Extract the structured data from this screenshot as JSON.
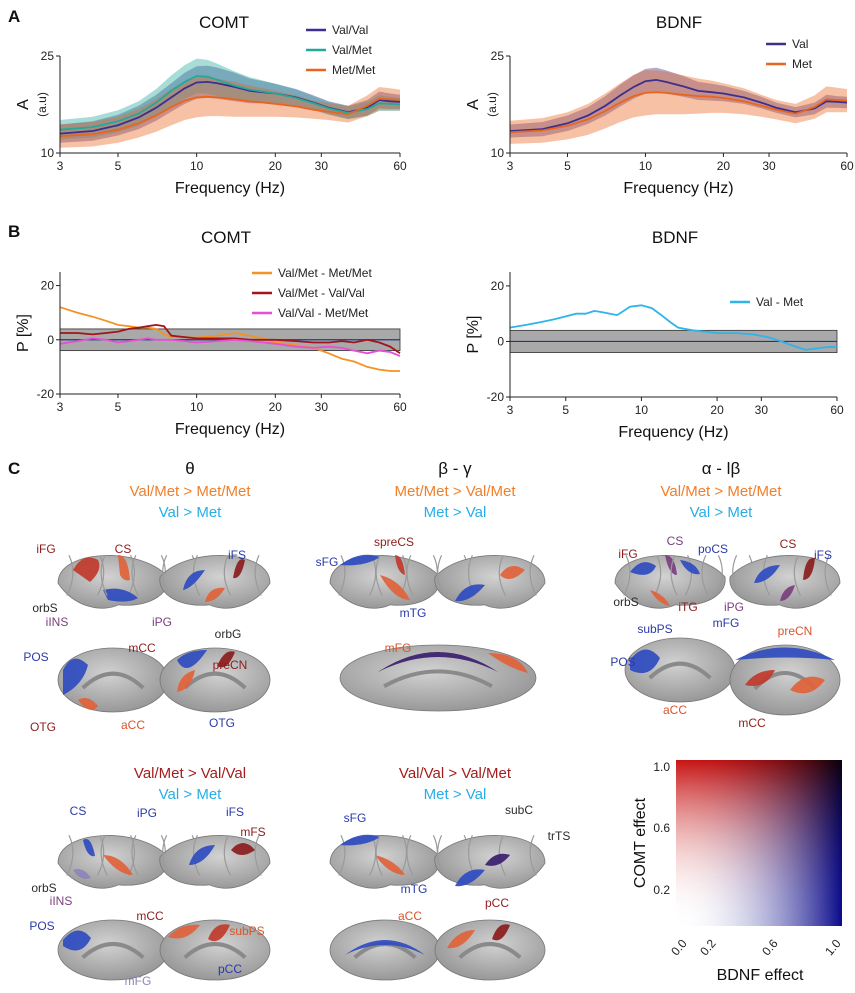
{
  "panels": {
    "A": "A",
    "B": "B",
    "C": "C"
  },
  "colors": {
    "val_val": "#3c2f8f",
    "val_met": "#23a89a",
    "met_met": "#e8651f",
    "val": "#3c2f8f",
    "met": "#e8651f",
    "b_valmet_metmet": "#f39325",
    "b_valmet_valval": "#a3141b",
    "b_valval_metmet": "#e64fd4",
    "b_val_met": "#2eb4e9",
    "sig_band": "#a9a9a9",
    "cond_orange": "#f07f2a",
    "cond_blue": "#27aee8",
    "cond_darkred": "#a51c1c",
    "region_dark": "#2b2b2b",
    "region_red": "#8c1d1d",
    "region_blue": "#2a3aa8",
    "region_purple": "#7a3f7f",
    "region_orange": "#d9552b",
    "region_lilac": "#8c86b8"
  },
  "chart_data": [
    {
      "id": "A-COMT",
      "type": "line",
      "title": "COMT",
      "xlabel": "Frequency (Hz)",
      "ylabel": "A",
      "ylabel_unit": "(a.u)",
      "xscale": "log",
      "xlim": [
        3,
        60
      ],
      "ylim": [
        10,
        25
      ],
      "xticks": [
        3,
        5,
        10,
        20,
        30,
        60
      ],
      "yticks": [
        10,
        25
      ],
      "legend": "top-right",
      "x": [
        3,
        4,
        5,
        6,
        7,
        8,
        9,
        10,
        11,
        12,
        14,
        16,
        18,
        20,
        24,
        28,
        32,
        38,
        45,
        50,
        55,
        60
      ],
      "series": [
        {
          "name": "Val/Val",
          "color_key": "val_val",
          "values": [
            13.0,
            13.4,
            14.3,
            15.5,
            17.0,
            18.6,
            20.0,
            20.9,
            21.0,
            20.8,
            20.2,
            19.6,
            19.4,
            19.2,
            18.6,
            17.8,
            17.0,
            16.3,
            17.0,
            18.2,
            18.0,
            17.9
          ],
          "band": [
            1.4,
            1.5,
            1.6,
            1.8,
            2.0,
            2.2,
            2.4,
            2.5,
            2.5,
            2.4,
            2.2,
            1.9,
            1.7,
            1.5,
            1.3,
            1.1,
            1.0,
            1.0,
            1.2,
            1.3,
            1.2,
            1.1
          ]
        },
        {
          "name": "Val/Met",
          "color_key": "val_met",
          "values": [
            13.6,
            14.0,
            14.9,
            16.1,
            17.8,
            19.6,
            21.0,
            21.9,
            21.8,
            21.3,
            20.4,
            19.8,
            19.5,
            19.2,
            18.5,
            17.7,
            16.9,
            16.2,
            16.8,
            17.7,
            17.6,
            17.5
          ],
          "band": [
            1.5,
            1.6,
            1.7,
            1.9,
            2.1,
            2.4,
            2.6,
            2.7,
            2.6,
            2.5,
            2.2,
            1.9,
            1.7,
            1.5,
            1.3,
            1.1,
            1.0,
            1.0,
            1.1,
            1.2,
            1.1,
            1.0
          ]
        },
        {
          "name": "Met/Met",
          "color_key": "met_met",
          "values": [
            12.6,
            12.9,
            13.6,
            14.6,
            15.8,
            17.1,
            18.1,
            18.6,
            18.7,
            18.6,
            18.3,
            18.0,
            17.8,
            17.6,
            17.2,
            16.7,
            16.4,
            16.0,
            17.3,
            18.4,
            18.3,
            18.2
          ],
          "band": [
            1.8,
            1.9,
            2.0,
            2.2,
            2.5,
            2.8,
            3.0,
            3.1,
            3.0,
            2.9,
            2.7,
            2.4,
            2.2,
            2.0,
            1.7,
            1.4,
            1.3,
            1.3,
            1.6,
            1.8,
            1.7,
            1.6
          ]
        }
      ]
    },
    {
      "id": "A-BDNF",
      "type": "line",
      "title": "BDNF",
      "xlabel": "Frequency (Hz)",
      "ylabel": "A",
      "ylabel_unit": "(a.u)",
      "xscale": "log",
      "xlim": [
        3,
        60
      ],
      "ylim": [
        10,
        25
      ],
      "xticks": [
        3,
        5,
        10,
        20,
        30,
        60
      ],
      "yticks": [
        10,
        25
      ],
      "legend": "top-right",
      "x": [
        3,
        4,
        5,
        6,
        7,
        8,
        9,
        10,
        11,
        12,
        14,
        16,
        18,
        20,
        24,
        28,
        32,
        38,
        45,
        50,
        55,
        60
      ],
      "series": [
        {
          "name": "Val",
          "color_key": "val",
          "values": [
            13.4,
            13.7,
            14.6,
            15.8,
            17.3,
            18.9,
            20.2,
            21.1,
            21.3,
            21.0,
            20.3,
            19.6,
            19.4,
            19.2,
            18.6,
            17.8,
            17.0,
            16.3,
            16.9,
            18.0,
            17.9,
            17.8
          ],
          "band": [
            1.0,
            1.1,
            1.2,
            1.3,
            1.5,
            1.7,
            1.8,
            1.9,
            1.9,
            1.8,
            1.6,
            1.4,
            1.3,
            1.2,
            1.0,
            0.9,
            0.8,
            0.8,
            0.9,
            1.0,
            0.9,
            0.9
          ]
        },
        {
          "name": "Met",
          "color_key": "met",
          "values": [
            13.2,
            13.5,
            14.2,
            15.2,
            16.5,
            17.8,
            18.8,
            19.3,
            19.4,
            19.3,
            19.0,
            18.8,
            18.7,
            18.5,
            18.0,
            17.3,
            16.7,
            16.1,
            17.1,
            18.3,
            18.2,
            18.1
          ],
          "band": [
            1.8,
            1.9,
            2.1,
            2.4,
            2.7,
            3.0,
            3.3,
            3.5,
            3.4,
            3.3,
            3.0,
            2.7,
            2.5,
            2.3,
            2.0,
            1.7,
            1.5,
            1.5,
            1.8,
            2.0,
            1.9,
            1.8
          ]
        }
      ]
    },
    {
      "id": "B-COMT",
      "type": "line",
      "title": "COMT",
      "xlabel": "Frequency (Hz)",
      "ylabel": "P [%]",
      "xscale": "log",
      "xlim": [
        3,
        60
      ],
      "ylim": [
        -20,
        25
      ],
      "xticks": [
        3,
        5,
        10,
        20,
        30,
        60
      ],
      "yticks": [
        -20,
        0,
        20
      ],
      "sig_band": [
        -4,
        4
      ],
      "legend": "top-right",
      "x": [
        3,
        3.5,
        4,
        4.5,
        5,
        5.5,
        6,
        6.5,
        7,
        7.5,
        8,
        9,
        10,
        12,
        14,
        16,
        18,
        20,
        24,
        28,
        32,
        36,
        40,
        45,
        50,
        55,
        60
      ],
      "series": [
        {
          "name": "Val/Met - Met/Met",
          "color_key": "b_valmet_metmet",
          "values": [
            12,
            10,
            8.5,
            7,
            5.5,
            5,
            4.5,
            4.5,
            4,
            2,
            1,
            1,
            0.8,
            1.5,
            2.5,
            1.5,
            0.5,
            -1,
            -2,
            -3,
            -5,
            -7,
            -8,
            -10,
            -11,
            -11.5,
            -11.5
          ]
        },
        {
          "name": "Val/Met - Val/Val",
          "color_key": "b_valmet_valval",
          "values": [
            2.5,
            2.5,
            2,
            2.5,
            3,
            4,
            4.5,
            5,
            5.5,
            5,
            1.5,
            1,
            0.5,
            0.5,
            0.5,
            0,
            0,
            0,
            -0.5,
            -1,
            -1,
            -0.5,
            -1,
            0,
            -1,
            -2.5,
            -5
          ]
        },
        {
          "name": "Val/Val - Met/Met",
          "color_key": "b_valval_metmet",
          "values": [
            -1.5,
            -0.5,
            0.5,
            0,
            -1,
            -0.5,
            0,
            0.5,
            0,
            0,
            0,
            -0.5,
            -1,
            -0.5,
            0,
            -0.5,
            -1,
            -1.5,
            -2.5,
            -3,
            -2.5,
            -3,
            -4,
            -5,
            -4,
            -4.5,
            -6
          ]
        }
      ]
    },
    {
      "id": "B-BDNF",
      "type": "line",
      "title": "BDNF",
      "xlabel": "Frequency (Hz)",
      "ylabel": "P [%]",
      "xscale": "log",
      "xlim": [
        3,
        60
      ],
      "ylim": [
        -20,
        25
      ],
      "xticks": [
        3,
        5,
        10,
        20,
        30,
        60
      ],
      "yticks": [
        -20,
        0,
        20
      ],
      "sig_band": [
        -4,
        4
      ],
      "legend": "top-right",
      "x": [
        3,
        3.5,
        4,
        4.5,
        5,
        5.5,
        6,
        6.5,
        7,
        7.5,
        8,
        8.5,
        9,
        10,
        11,
        12,
        13,
        14,
        16,
        18,
        20,
        24,
        28,
        32,
        36,
        40,
        45,
        50,
        55,
        60
      ],
      "series": [
        {
          "name": "Val - Met",
          "color_key": "b_val_met",
          "values": [
            5,
            6,
            7,
            8,
            9,
            10,
            10,
            11,
            10.5,
            10,
            9.5,
            11,
            12.5,
            13,
            12,
            9.5,
            7,
            5,
            4,
            3.5,
            3,
            3,
            2.5,
            1.5,
            0,
            -1.5,
            -3,
            -2.5,
            -2,
            -2
          ]
        }
      ]
    }
  ],
  "panel_c": {
    "theta": {
      "title": "θ",
      "cond1": "Val/Met > Met/Met",
      "cond2": "Val > Met",
      "labels": [
        "iFG",
        "CS",
        "iFS",
        "orbS",
        "iINS",
        "iPG",
        "orbG",
        "POS",
        "mCC",
        "preCN",
        "OTG",
        "aCC",
        "OTG"
      ]
    },
    "beta_gamma": {
      "title": "β - γ",
      "cond1": "Met/Met > Val/Met",
      "cond2": "Met > Val",
      "labels": [
        "spreCS",
        "sFG",
        "mTG",
        "mFG"
      ]
    },
    "alpha": {
      "title": "α - lβ",
      "cond1": "Val/Met > Met/Met",
      "cond2": "Val > Met",
      "labels": [
        "iFG",
        "CS",
        "poCS",
        "CS",
        "iFS",
        "orbS",
        "iTG",
        "iPG",
        "subPS",
        "POS",
        "mFG",
        "preCN",
        "aCC",
        "mCC"
      ]
    },
    "theta2": {
      "cond1": "Val/Met > Val/Val",
      "cond2": "Val > Met",
      "labels": [
        "CS",
        "iPG",
        "iFS",
        "mFS",
        "orbS",
        "iINS",
        "POS",
        "mCC",
        "subPS",
        "pCC",
        "mFG"
      ]
    },
    "bg2": {
      "cond1": "Val/Val > Val/Met",
      "cond2": "Met > Val",
      "labels": [
        "subC",
        "sFG",
        "trTS",
        "mTG",
        "aCC",
        "pCC"
      ]
    },
    "colormap": {
      "ylabel": "COMT effect",
      "xlabel": "BDNF effect",
      "yticks": [
        "1.0",
        "0.6",
        "0.2"
      ],
      "xticks": [
        "0.0",
        "0.2",
        "0.6",
        "1.0"
      ]
    }
  }
}
